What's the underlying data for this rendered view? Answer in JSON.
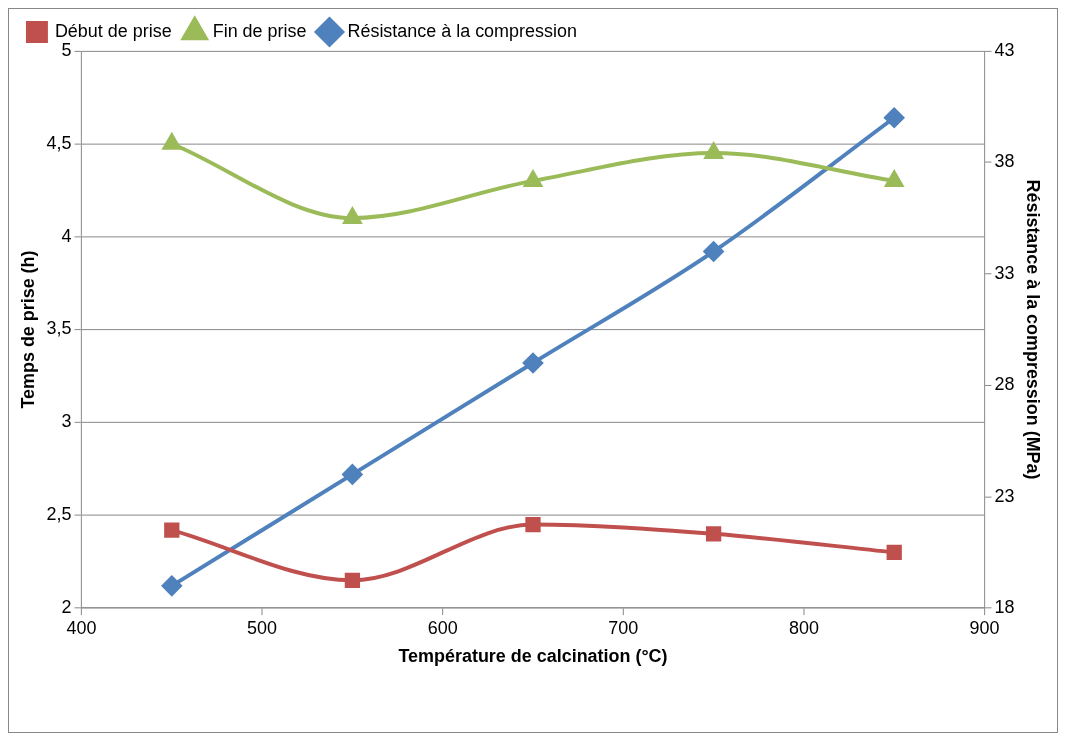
{
  "chart_data": {
    "type": "line",
    "xlabel": "Température de calcination (°C)",
    "ylabel": "Temps de prise (h)",
    "y2label": "Résistance à la compression (MPa)",
    "x": [
      450,
      550,
      650,
      750,
      850
    ],
    "series": [
      {
        "name": "Début de prise",
        "color": "#c0504d",
        "marker": "square",
        "values": [
          2.42,
          2.15,
          2.45,
          2.4,
          2.3
        ]
      },
      {
        "name": "Fin de prise",
        "color": "#9bbb59",
        "marker": "triangle",
        "values": [
          4.5,
          4.1,
          4.3,
          4.45,
          4.3
        ]
      },
      {
        "name": "Résistance à la compression",
        "color": "#4f81bd",
        "marker": "diamond",
        "axis": "y2",
        "values": [
          19,
          24,
          29,
          34,
          40
        ]
      }
    ],
    "xlim": [
      400,
      900
    ],
    "xticks": [
      400,
      500,
      600,
      700,
      800,
      900
    ],
    "ylim": [
      2,
      5
    ],
    "yticks": [
      {
        "value": 2,
        "label": "2"
      },
      {
        "value": 2.5,
        "label": "2,5"
      },
      {
        "value": 3,
        "label": "3"
      },
      {
        "value": 3.5,
        "label": "3,5"
      },
      {
        "value": 4,
        "label": "4"
      },
      {
        "value": 4.5,
        "label": "4,5"
      },
      {
        "value": 5,
        "label": "5"
      }
    ],
    "y2lim": [
      18,
      43
    ],
    "y2ticks": [
      18,
      23,
      28,
      33,
      38,
      43
    ],
    "grid": "y",
    "legend": "top left",
    "line_style": "solid"
  }
}
